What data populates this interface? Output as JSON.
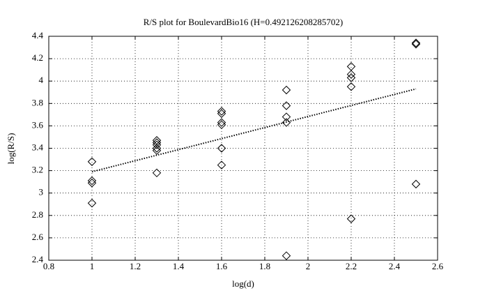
{
  "chart_data": {
    "type": "scatter",
    "title": "R/S plot for BoulevardBio16 (H=0.492126208285702)",
    "x_label": "log(d)",
    "y_label": "log(R/S)",
    "xlim": [
      0.8,
      2.6
    ],
    "ylim": [
      2.4,
      4.4
    ],
    "xticks": [
      0.8,
      1,
      1.2,
      1.4,
      1.6,
      1.8,
      2,
      2.2,
      2.4,
      2.6
    ],
    "yticks": [
      2.4,
      2.6,
      2.8,
      3,
      3.2,
      3.4,
      3.6,
      3.8,
      4,
      4.2,
      4.4
    ],
    "grid": true,
    "series": [
      {
        "kind": "scatter",
        "marker": "diamond",
        "color": "#000000",
        "x": [
          1,
          1,
          1,
          1,
          1.3,
          1.3,
          1.3,
          1.3,
          1.3,
          1.3,
          1.6,
          1.6,
          1.6,
          1.6,
          1.6,
          1.6,
          1.9,
          1.9,
          1.9,
          1.9,
          1.9,
          2.2,
          2.2,
          2.2,
          2.2,
          2.2,
          2.5,
          2.5,
          2.5
        ],
        "values": [
          3.28,
          3.11,
          3.09,
          2.91,
          3.47,
          3.45,
          3.43,
          3.4,
          3.38,
          3.18,
          3.73,
          3.71,
          3.63,
          3.61,
          3.4,
          3.25,
          3.92,
          3.78,
          3.68,
          3.63,
          2.44,
          4.13,
          4.06,
          4.03,
          3.95,
          2.77,
          4.34,
          4.33,
          3.08
        ]
      },
      {
        "kind": "line",
        "dash": "dotted",
        "color": "#000000",
        "x": [
          1,
          2.5
        ],
        "values": [
          3.19,
          3.93
        ]
      }
    ]
  }
}
